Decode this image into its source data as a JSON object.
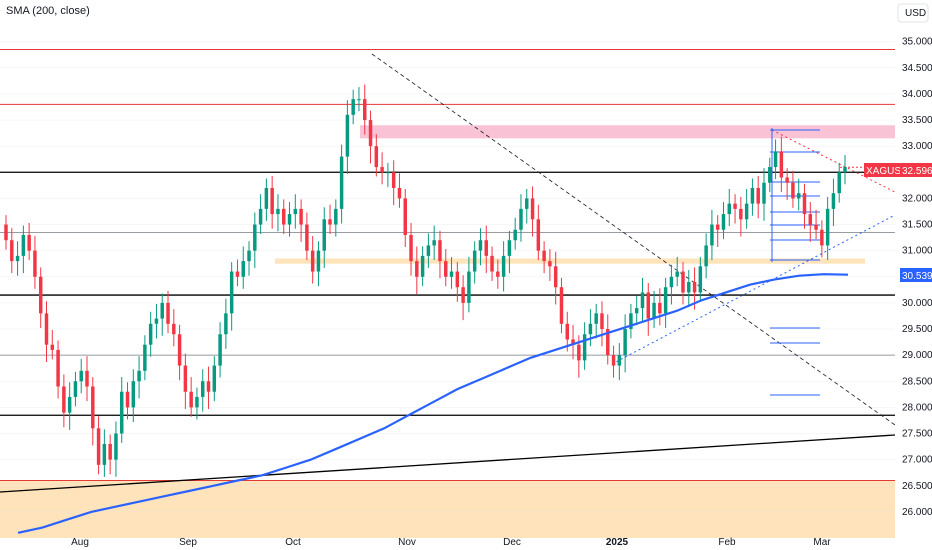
{
  "indicator_label": "SMA (200, close)",
  "currency_button": "USD",
  "colors": {
    "up": "#089981",
    "down": "#f23645",
    "sma": "#2962ff",
    "resistance": "#e53935",
    "support": "#000000",
    "grid": "#e0e3eb",
    "zone_red": "#f8bbd0",
    "zone_orange": "#ffe0b2"
  },
  "price_tag": {
    "symbol": "XAGUSD",
    "value": "32.596"
  },
  "sma_tag": {
    "value": "30.539"
  },
  "chart_data": {
    "type": "candlestick",
    "title": "",
    "ylim": [
      25.5,
      35.3
    ],
    "y_ticks": [
      "35.000",
      "34.500",
      "34.000",
      "33.500",
      "33.000",
      "32.500",
      "32.000",
      "31.500",
      "31.000",
      "30.500",
      "30.000",
      "29.500",
      "29.000",
      "28.500",
      "28.000",
      "27.500",
      "27.000",
      "26.500",
      "26.000"
    ],
    "x_labels": [
      "Aug",
      "Sep",
      "Oct",
      "Nov",
      "Dec",
      "2025",
      "Feb",
      "Mar"
    ],
    "series": [
      {
        "name": "XAGUSD",
        "open": [
          31.5,
          31.2,
          30.8,
          30.9,
          31.3,
          31.0,
          30.5,
          29.8,
          29.2,
          29.1,
          28.4,
          27.9,
          28.2,
          28.5,
          28.7,
          28.4,
          27.6,
          26.9,
          27.3,
          27.0,
          27.5,
          28.3,
          28.0,
          28.5,
          28.7,
          29.2,
          29.6,
          29.7,
          30.0,
          29.6,
          29.4,
          28.8,
          28.3,
          28.0,
          28.2,
          28.5,
          28.3,
          28.8,
          29.4,
          29.8,
          30.6,
          30.5,
          30.8,
          31.0,
          31.5,
          31.8,
          32.2,
          31.7,
          31.8,
          31.5,
          31.7,
          31.8,
          31.5,
          31.0,
          30.6,
          31.0,
          31.6,
          31.5,
          31.8,
          32.8,
          33.6,
          33.9,
          33.9,
          33.5,
          33.0,
          32.6,
          32.5,
          32.5,
          32.2,
          32.0,
          31.3,
          30.8,
          30.5,
          30.9,
          31.1,
          31.2,
          30.8,
          30.5,
          30.6,
          30.3,
          30.0,
          30.6,
          31.0,
          31.2,
          30.9,
          30.6,
          30.5,
          30.9,
          31.2,
          31.4,
          31.8,
          32.0,
          31.6,
          31.0,
          30.8,
          30.7,
          30.3,
          29.6,
          29.3,
          29.2,
          28.9,
          29.4,
          29.6,
          29.8,
          29.5,
          29.0,
          28.8,
          29.0,
          29.5,
          29.8,
          29.9,
          30.2,
          29.7,
          30.0,
          29.8,
          30.3,
          30.5,
          30.6,
          30.2,
          30.4,
          30.2,
          30.7,
          31.1,
          31.5,
          31.4,
          31.7,
          31.9,
          31.8,
          31.6,
          31.9,
          32.2,
          31.9,
          32.3,
          32.6,
          32.9,
          32.4,
          32.3,
          32.0,
          32.1,
          31.7,
          31.5,
          31.4,
          31.1,
          31.8,
          32.1,
          32.5
        ],
        "close": [
          31.2,
          30.8,
          30.9,
          31.3,
          31.0,
          30.5,
          29.8,
          29.2,
          29.1,
          28.4,
          27.9,
          28.2,
          28.5,
          28.7,
          28.4,
          27.6,
          26.9,
          27.3,
          27.0,
          27.5,
          28.3,
          28.0,
          28.5,
          28.7,
          29.2,
          29.6,
          29.7,
          30.0,
          29.6,
          29.4,
          28.8,
          28.3,
          28.0,
          28.2,
          28.5,
          28.3,
          28.8,
          29.4,
          29.8,
          30.6,
          30.5,
          30.8,
          31.0,
          31.5,
          31.8,
          32.2,
          31.7,
          31.8,
          31.5,
          31.7,
          31.8,
          31.5,
          31.0,
          30.6,
          31.0,
          31.6,
          31.5,
          31.8,
          32.8,
          33.6,
          33.9,
          33.9,
          33.5,
          33.0,
          32.6,
          32.5,
          32.5,
          32.2,
          32.0,
          31.3,
          30.8,
          30.5,
          30.9,
          31.1,
          31.2,
          30.8,
          30.5,
          30.6,
          30.3,
          30.0,
          30.6,
          31.0,
          31.2,
          30.9,
          30.6,
          30.5,
          30.9,
          31.2,
          31.4,
          31.8,
          32.0,
          31.6,
          31.0,
          30.8,
          30.7,
          30.3,
          29.6,
          29.3,
          29.2,
          28.9,
          29.4,
          29.6,
          29.8,
          29.5,
          29.0,
          28.8,
          29.0,
          29.5,
          29.8,
          29.9,
          30.2,
          29.7,
          30.0,
          29.8,
          30.3,
          30.5,
          30.6,
          30.2,
          30.4,
          30.2,
          30.7,
          31.1,
          31.5,
          31.4,
          31.7,
          31.9,
          31.8,
          31.6,
          31.9,
          32.2,
          31.9,
          32.3,
          32.6,
          32.9,
          32.4,
          32.3,
          32.0,
          32.1,
          31.7,
          31.5,
          31.4,
          31.1,
          31.8,
          32.1,
          32.5,
          32.6
        ]
      }
    ],
    "sma_200": [
      25.6,
      25.7,
      25.85,
      26.0,
      26.1,
      26.2,
      26.3,
      26.4,
      26.5,
      26.6,
      26.7,
      26.85,
      27.0,
      27.2,
      27.4,
      27.6,
      27.85,
      28.1,
      28.35,
      28.55,
      28.75,
      28.95,
      29.1,
      29.25,
      29.4,
      29.55,
      29.7,
      29.85,
      30.05,
      30.2,
      30.35,
      30.45,
      30.52,
      30.55,
      30.54
    ],
    "horizontal_levels": [
      {
        "price": 34.85,
        "color": "resistance"
      },
      {
        "price": 33.8,
        "color": "resistance"
      },
      {
        "price": 32.5,
        "color": "support"
      },
      {
        "price": 31.35,
        "color": "grid-dark"
      },
      {
        "price": 30.15,
        "color": "support"
      },
      {
        "price": 29.0,
        "color": "grid-dark"
      },
      {
        "price": 27.85,
        "color": "support"
      },
      {
        "price": 26.6,
        "color": "resistance"
      }
    ],
    "zones": [
      {
        "from": 33.15,
        "to": 33.4,
        "color": "zone_red"
      },
      {
        "from": 30.75,
        "to": 30.85,
        "color": "zone_orange"
      },
      {
        "from": 25.5,
        "to": 26.6,
        "color": "zone_orange"
      }
    ]
  }
}
